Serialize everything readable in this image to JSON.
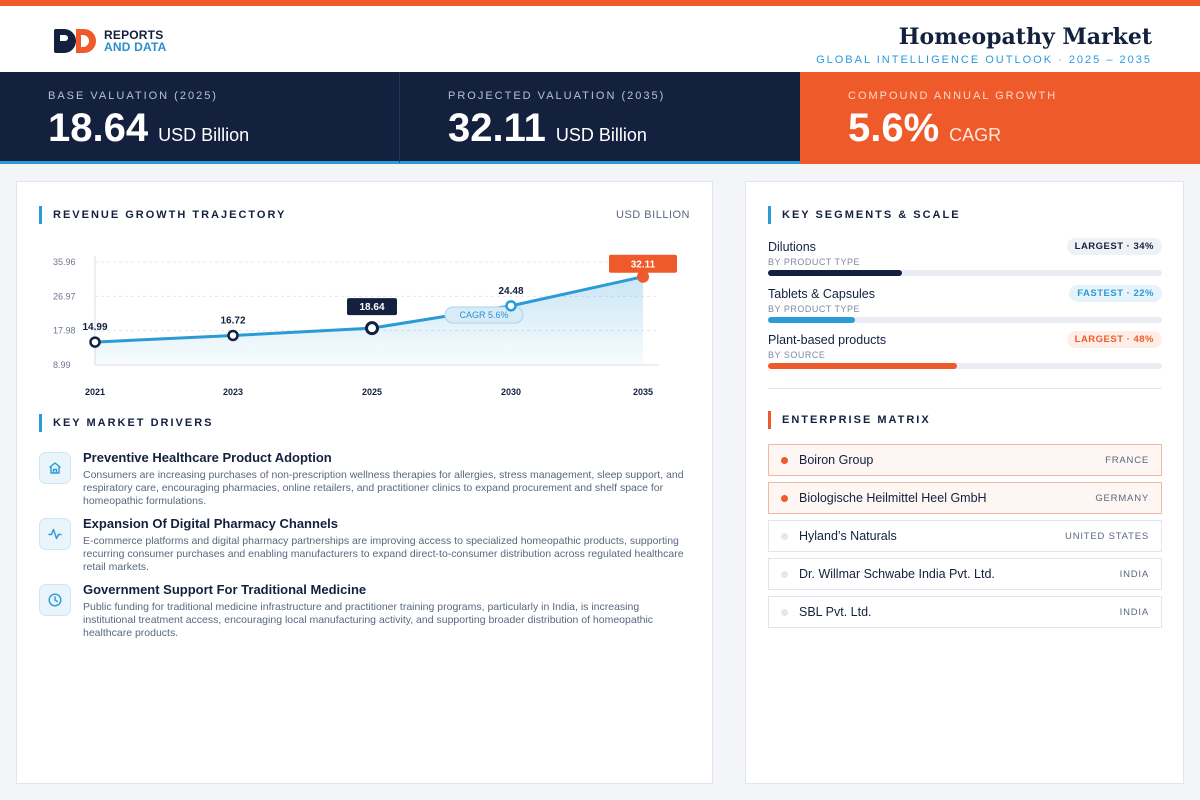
{
  "brand": {
    "line1": "REPORTS",
    "line2": "AND DATA"
  },
  "header": {
    "title": "Homeopathy Market",
    "subtitle": "GLOBAL INTELLIGENCE OUTLOOK  ·  2025 – 2035"
  },
  "kpis": [
    {
      "label": "BASE VALUATION (2025)",
      "value": "18.64",
      "unit": "USD Billion"
    },
    {
      "label": "PROJECTED VALUATION (2035)",
      "value": "32.11",
      "unit": "USD Billion"
    },
    {
      "label": "COMPOUND ANNUAL GROWTH",
      "value": "5.6%",
      "unit": "CAGR"
    }
  ],
  "revenue": {
    "title": "REVENUE GROWTH TRAJECTORY",
    "unit": "USD BILLION"
  },
  "chart_data": {
    "type": "area",
    "x": [
      "2021",
      "2023",
      "2025",
      "2030",
      "2035"
    ],
    "values": [
      14.99,
      16.72,
      18.64,
      24.48,
      32.11
    ],
    "data_labels": [
      "14.99",
      "16.72",
      "18.64",
      "24.48",
      "32.11"
    ],
    "y_ticks": [
      "35.96",
      "26.97",
      "17.98",
      "8.99"
    ],
    "ylim": [
      8.99,
      35.96
    ],
    "annotation": "CAGR 5.6%",
    "grid": true,
    "colors": {
      "line": "#2a9bd6",
      "highlight": "#13213f",
      "end": "#ef5a2a"
    }
  },
  "drivers": {
    "title": "KEY MARKET DRIVERS",
    "items": [
      {
        "icon": "home-icon",
        "title": "Preventive Healthcare Product Adoption",
        "desc": "Consumers are increasing purchases of non-prescription wellness therapies for allergies, stress management, sleep support, and respiratory care, encouraging pharmacies, online retailers, and practitioner clinics to expand procurement and shelf space for homeopathic formulations."
      },
      {
        "icon": "activity-icon",
        "title": "Expansion Of Digital Pharmacy Channels",
        "desc": "E-commerce platforms and digital pharmacy partnerships are improving access to specialized homeopathic products, supporting recurring consumer purchases and enabling manufacturers to expand direct-to-consumer distribution across regulated healthcare retail markets."
      },
      {
        "icon": "clock-icon",
        "title": "Government Support For Traditional Medicine",
        "desc": "Public funding for traditional medicine infrastructure and practitioner training programs, particularly in India, is increasing institutional treatment access, encouraging local manufacturing activity, and supporting broader distribution of homeopathic healthcare products."
      }
    ]
  },
  "segments": {
    "title": "KEY SEGMENTS & SCALE",
    "items": [
      {
        "name": "Dilutions",
        "sub": "BY PRODUCT TYPE",
        "badge": "LARGEST · 34%",
        "share": 0.34,
        "color": "#13213f"
      },
      {
        "name": "Tablets & Capsules",
        "sub": "BY PRODUCT TYPE",
        "badge": "FASTEST · 22%",
        "share": 0.22,
        "color": "#2a9bd6"
      },
      {
        "name": "Plant-based products",
        "sub": "BY SOURCE",
        "badge": "LARGEST · 48%",
        "share": 0.48,
        "color": "#ef5a2a"
      }
    ]
  },
  "matrix": {
    "title": "ENTERPRISE MATRIX",
    "items": [
      {
        "name": "Boiron Group",
        "country": "FRANCE"
      },
      {
        "name": "Biologische Heilmittel Heel GmbH",
        "country": "GERMANY"
      },
      {
        "name": "Hyland’s Naturals",
        "country": "UNITED STATES"
      },
      {
        "name": "Dr. Willmar Schwabe India Pvt. Ltd.",
        "country": "INDIA"
      },
      {
        "name": "SBL Pvt. Ltd.",
        "country": "INDIA"
      }
    ]
  }
}
